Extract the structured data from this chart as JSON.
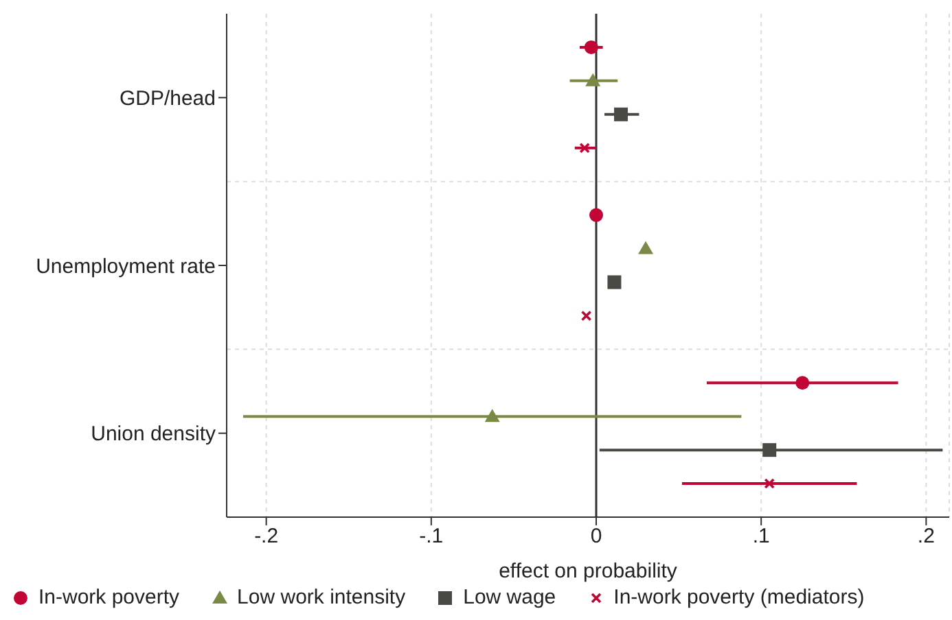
{
  "chart_data": {
    "type": "scatter",
    "orientation": "horizontal",
    "xlabel": "effect on probability",
    "categories": [
      "GDP/head",
      "Unemployment rate",
      "Union density"
    ],
    "xlim": [
      -0.224,
      0.214
    ],
    "xticks": [
      {
        "value": -0.2,
        "label": "-.2"
      },
      {
        "value": -0.1,
        "label": "-.1"
      },
      {
        "value": 0,
        "label": "0"
      },
      {
        "value": 0.1,
        "label": ".1"
      },
      {
        "value": 0.2,
        "label": ".2"
      }
    ],
    "grid": true,
    "legend": "bottom",
    "ref_lines": [
      {
        "axis": "x",
        "value": 0,
        "color": "#333333"
      }
    ],
    "series": [
      {
        "name": "In-work poverty",
        "color": "#c10534",
        "marker": "circle",
        "values": [
          -0.003,
          0.0,
          0.125
        ],
        "errors": [
          [
            -0.01,
            0.004
          ],
          null,
          [
            0.067,
            0.183
          ]
        ]
      },
      {
        "name": "Low work intensity",
        "color": "#7a8a46",
        "marker": "triangle",
        "values": [
          -0.002,
          0.03,
          -0.063
        ],
        "errors": [
          [
            -0.016,
            0.013
          ],
          null,
          [
            -0.214,
            0.088
          ]
        ]
      },
      {
        "name": "Low wage",
        "color": "#4a4a45",
        "marker": "square",
        "values": [
          0.015,
          0.011,
          0.105
        ],
        "errors": [
          [
            0.005,
            0.026
          ],
          null,
          [
            0.002,
            0.21
          ]
        ]
      },
      {
        "name": "In-work poverty (mediators)",
        "color": "#c10534",
        "marker": "cross",
        "values": [
          -0.007,
          -0.006,
          0.105
        ],
        "errors": [
          [
            -0.013,
            0.0
          ],
          null,
          [
            0.052,
            0.158
          ]
        ]
      }
    ]
  }
}
